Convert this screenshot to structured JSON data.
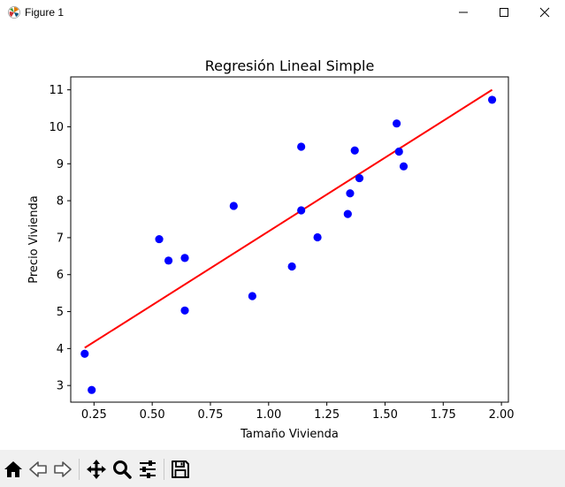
{
  "window": {
    "title": "Figure 1",
    "controls": [
      "minimize",
      "maximize",
      "close"
    ]
  },
  "toolbar": {
    "buttons": [
      {
        "name": "home",
        "icon": "home-icon"
      },
      {
        "name": "back",
        "icon": "back-arrow-icon"
      },
      {
        "name": "forward",
        "icon": "forward-arrow-icon"
      },
      {
        "name": "pan",
        "icon": "move-icon"
      },
      {
        "name": "zoom",
        "icon": "magnifier-icon"
      },
      {
        "name": "configure-subplots",
        "icon": "sliders-icon"
      },
      {
        "name": "save",
        "icon": "floppy-disk-icon"
      }
    ]
  },
  "chart_data": {
    "type": "scatter",
    "title": "Regresión Lineal Simple",
    "xlabel": "Tamaño Vivienda",
    "ylabel": "Precio Vivienda",
    "xlim": [
      0.15,
      2.03
    ],
    "ylim": [
      2.55,
      11.35
    ],
    "xticks": [
      "0.25",
      "0.50",
      "0.75",
      "1.00",
      "1.25",
      "1.50",
      "1.75",
      "2.00"
    ],
    "yticks": [
      "3",
      "4",
      "5",
      "6",
      "7",
      "8",
      "9",
      "10",
      "11"
    ],
    "grid": false,
    "series": [
      {
        "kind": "scatter",
        "color": "#0000ff",
        "points": [
          [
            0.21,
            3.86
          ],
          [
            0.24,
            2.88
          ],
          [
            0.53,
            6.96
          ],
          [
            0.57,
            6.38
          ],
          [
            0.64,
            6.45
          ],
          [
            0.64,
            5.03
          ],
          [
            0.85,
            7.86
          ],
          [
            0.93,
            5.42
          ],
          [
            1.1,
            6.22
          ],
          [
            1.14,
            9.46
          ],
          [
            1.14,
            7.74
          ],
          [
            1.21,
            7.01
          ],
          [
            1.34,
            7.64
          ],
          [
            1.35,
            8.2
          ],
          [
            1.37,
            9.36
          ],
          [
            1.39,
            8.61
          ],
          [
            1.55,
            10.09
          ],
          [
            1.56,
            9.33
          ],
          [
            1.58,
            8.93
          ],
          [
            1.96,
            10.73
          ]
        ]
      },
      {
        "kind": "line",
        "color": "#ff0000",
        "points": [
          [
            0.21,
            4.02
          ],
          [
            1.96,
            11.0
          ]
        ]
      }
    ]
  }
}
